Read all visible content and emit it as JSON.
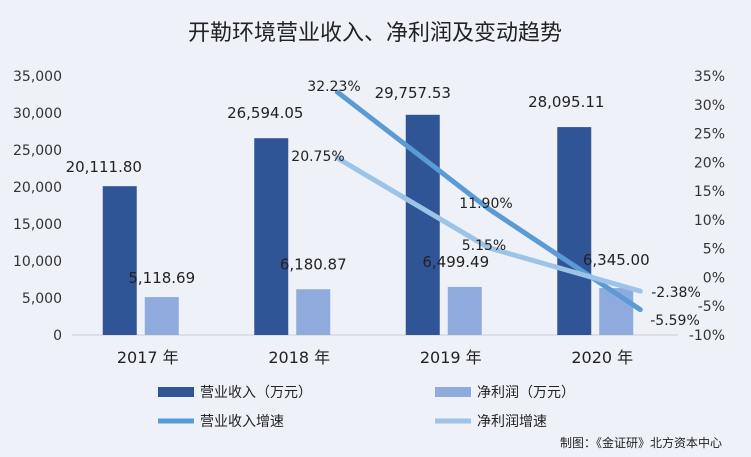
{
  "chart_data": {
    "type": "bar",
    "title": "开勒环境营业收入、净利润及变动趋势",
    "categories": [
      "2017 年",
      "2018 年",
      "2019 年",
      "2020 年"
    ],
    "y_left": {
      "min": 0,
      "max": 35000,
      "step": 5000,
      "ticks": [
        "0",
        "5,000",
        "10,000",
        "15,000",
        "20,000",
        "25,000",
        "30,000",
        "35,000"
      ]
    },
    "y_right": {
      "min": -10,
      "max": 35,
      "step": 5,
      "ticks": [
        "-10%",
        "-5%",
        "0%",
        "5%",
        "10%",
        "15%",
        "20%",
        "25%",
        "30%",
        "35%"
      ]
    },
    "bar_series": [
      {
        "name": "营业收入（万元）",
        "color": "#2f5597",
        "values": [
          20111.8,
          26594.05,
          29757.53,
          28095.11
        ],
        "labels": [
          "20,111.80",
          "26,594.05",
          "29,757.53",
          "28,095.11"
        ]
      },
      {
        "name": "净利润（万元）",
        "color": "#8faadc",
        "values": [
          5118.69,
          6180.87,
          6499.49,
          6345.0
        ],
        "labels": [
          "5,118.69",
          "6,180.87",
          "6,499.49",
          "6,345.00"
        ]
      }
    ],
    "line_series": [
      {
        "name": "营业收入增速",
        "color": "#5b9bd5",
        "values": [
          null,
          32.23,
          11.9,
          -5.59
        ],
        "labels": [
          "",
          "32.23%",
          "11.90%",
          "-5.59%"
        ]
      },
      {
        "name": "净利润增速",
        "color": "#9dc3e6",
        "values": [
          null,
          20.75,
          5.15,
          -2.38
        ],
        "labels": [
          "",
          "20.75%",
          "5.15%",
          "-2.38%"
        ]
      }
    ],
    "legend_position": "bottom",
    "grid": false,
    "source_note": "制图：《金证研》北方资本中心"
  }
}
